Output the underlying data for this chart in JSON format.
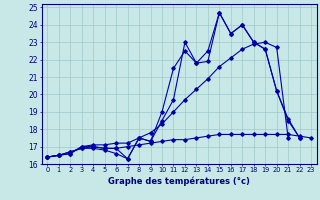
{
  "xlabel": "Graphe des températures (°c)",
  "x": [
    0,
    1,
    2,
    3,
    4,
    5,
    6,
    7,
    8,
    9,
    10,
    11,
    12,
    13,
    14,
    15,
    16,
    17,
    18,
    19,
    20,
    21,
    22,
    23
  ],
  "series1": [
    16.4,
    16.5,
    16.7,
    16.9,
    16.9,
    16.8,
    16.6,
    16.3,
    17.5,
    17.3,
    18.5,
    19.7,
    23.0,
    21.8,
    21.9,
    24.7,
    23.5,
    24.0,
    23.0,
    22.6,
    20.2,
    18.6,
    17.5,
    null
  ],
  "series2": [
    16.4,
    16.5,
    16.7,
    16.9,
    17.0,
    16.9,
    16.9,
    16.3,
    17.5,
    17.3,
    19.0,
    21.5,
    22.5,
    21.8,
    22.5,
    24.7,
    23.5,
    24.0,
    23.0,
    22.6,
    20.2,
    18.5,
    17.5,
    null
  ],
  "series3": [
    16.4,
    16.5,
    16.6,
    17.0,
    17.0,
    16.9,
    16.9,
    17.0,
    17.1,
    17.2,
    17.3,
    17.4,
    17.4,
    17.5,
    17.6,
    17.7,
    17.7,
    17.7,
    17.7,
    17.7,
    17.7,
    17.7,
    17.6,
    17.5
  ],
  "series4": [
    16.4,
    16.5,
    16.6,
    17.0,
    17.1,
    17.1,
    17.2,
    17.2,
    17.5,
    17.8,
    18.3,
    19.0,
    19.7,
    20.3,
    20.9,
    21.6,
    22.1,
    22.6,
    22.9,
    23.0,
    22.7,
    17.5,
    null,
    null
  ],
  "line_color": "#0000aa",
  "bg_color": "#c8e8e8",
  "grid_color": "#a0c8c8",
  "ylim": [
    16,
    25
  ],
  "yticks": [
    16,
    17,
    18,
    19,
    20,
    21,
    22,
    23,
    24,
    25
  ],
  "xticks": [
    0,
    1,
    2,
    3,
    4,
    5,
    6,
    7,
    8,
    9,
    10,
    11,
    12,
    13,
    14,
    15,
    16,
    17,
    18,
    19,
    20,
    21,
    22,
    23
  ]
}
